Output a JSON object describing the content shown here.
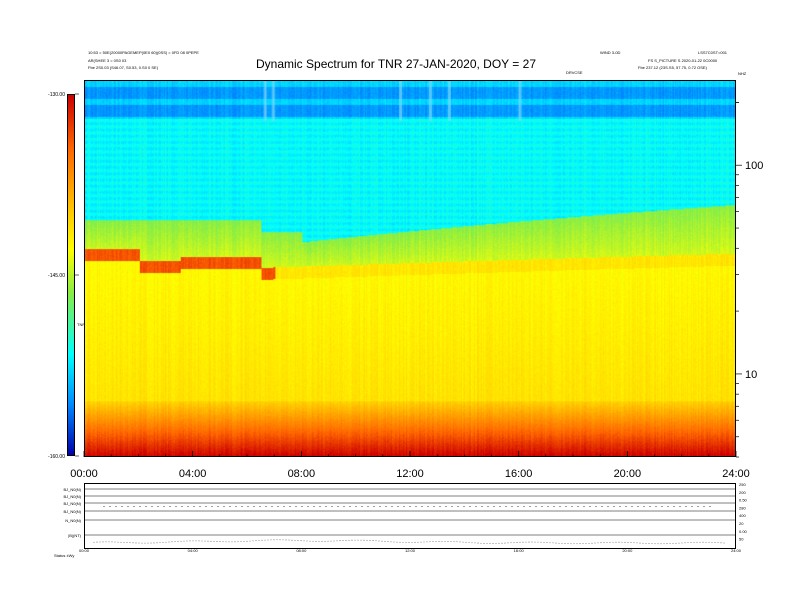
{
  "header": {
    "title": "Dynamic Spectrum for TNR 27-JAN-2020, DOY = 27",
    "left_line1": "10:53 = 50E(20000PAGEMEP(0E0 60)(0SS) = 0FD 08 0PEPE",
    "left_line2": "AR(SHEE 3 = 0S0 03",
    "left_line3": "Fbe   2S0.03 (S46.07, S0.53, 0.S0 0 SE)",
    "right_line1": "WIND 3-0D",
    "right_line2": "LSS7C0ST=001",
    "right_line3": "FS S_PICTURE S  2020-01-22 0C0000",
    "right_line4": "Fbe   237.12 (23S.S5, 57.75, 0.72 OSE)",
    "center_small": "DRVCSE",
    "corner_right": "NHZ",
    "ylabel_small": "TNR"
  },
  "colorbar": {
    "ticks": [
      "-130.00",
      "-145.00",
      "-160.00"
    ]
  },
  "bottom_panel": {
    "row_labels": [
      "BJ_N0(N)",
      "BJ_N0(N)",
      "BJ_N0(N)",
      "BJ_N0(N)",
      "N_N0(N)",
      "|B|(NT)"
    ],
    "right_labels": [
      "250",
      "200",
      "0.50",
      "280",
      "400",
      "20",
      "0.00",
      "50"
    ],
    "x_ticks": [
      "00:00",
      "04:00",
      "08:00",
      "12:00",
      "16:00",
      "20:00",
      "24:00"
    ],
    "footer": "Status   ±Wy"
  },
  "chart_data": {
    "type": "heatmap",
    "title": "Dynamic Spectrum for TNR 27-JAN-2020, DOY = 27",
    "xlabel": "",
    "ylabel": "",
    "x_ticks": [
      "00:00",
      "04:00",
      "08:00",
      "12:00",
      "16:00",
      "20:00",
      "24:00"
    ],
    "x_range_hours": [
      0,
      24
    ],
    "y_scale": "log",
    "y_range_khz": [
      4,
      256
    ],
    "y_ticks": [
      "100",
      "10"
    ],
    "y_tick_values": [
      100,
      10
    ],
    "colorbar_ticks": [
      "-130.00",
      "-145.00",
      "-160.00"
    ],
    "colorbar_range": [
      -160,
      -130
    ],
    "features": {
      "band_edge_khz_start": 43,
      "band_edge_khz_end": 65,
      "red_bright_trace_khz": 34,
      "red_floor_khz": 4.6
    }
  }
}
